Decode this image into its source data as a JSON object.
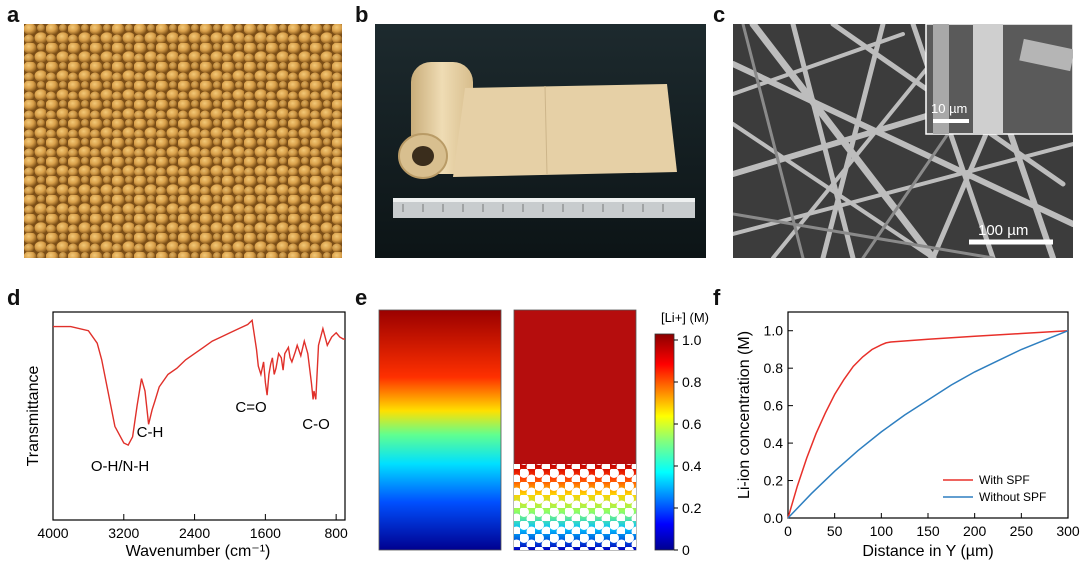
{
  "panels": {
    "a": {
      "letter": "a"
    },
    "b": {
      "letter": "b"
    },
    "c": {
      "letter": "c",
      "inset_scale": "10 µm",
      "main_scale": "100 µm"
    },
    "e": {
      "letter": "e",
      "colorbar_title": "[Li+] (M)",
      "colorbar_ticks": [
        "1.0",
        "0.8",
        "0.6",
        "0.4",
        "0.2",
        "0"
      ]
    }
  },
  "chart_data": [
    {
      "panel": "d",
      "type": "line",
      "xlabel": "Wavenumber (cm⁻¹)",
      "ylabel": "Transmittance",
      "xlim": [
        4000,
        700
      ],
      "x_ticks": [
        4000,
        3200,
        2400,
        1600,
        800
      ],
      "x_reversed": true,
      "series": [
        {
          "color": "#e0302a",
          "x": [
            4000,
            3800,
            3600,
            3500,
            3450,
            3380,
            3300,
            3200,
            3150,
            3100,
            3050,
            3000,
            2960,
            2920,
            2880,
            2850,
            2800,
            2700,
            2600,
            2500,
            2400,
            2300,
            2200,
            2100,
            2000,
            1900,
            1800,
            1750,
            1700,
            1680,
            1650,
            1620,
            1600,
            1580,
            1560,
            1540,
            1520,
            1500,
            1480,
            1450,
            1420,
            1400,
            1380,
            1340,
            1320,
            1300,
            1260,
            1240,
            1200,
            1160,
            1120,
            1100,
            1080,
            1060,
            1050,
            1030,
            1000,
            950,
            900,
            850,
            800,
            760,
            720,
            700
          ],
          "y": [
            0.93,
            0.93,
            0.91,
            0.85,
            0.77,
            0.62,
            0.45,
            0.37,
            0.36,
            0.4,
            0.55,
            0.68,
            0.62,
            0.46,
            0.53,
            0.57,
            0.64,
            0.7,
            0.73,
            0.77,
            0.8,
            0.83,
            0.86,
            0.88,
            0.9,
            0.92,
            0.94,
            0.96,
            0.82,
            0.74,
            0.7,
            0.76,
            0.66,
            0.6,
            0.7,
            0.75,
            0.78,
            0.7,
            0.73,
            0.8,
            0.78,
            0.72,
            0.8,
            0.83,
            0.78,
            0.76,
            0.81,
            0.84,
            0.79,
            0.86,
            0.8,
            0.73,
            0.66,
            0.58,
            0.62,
            0.58,
            0.84,
            0.92,
            0.84,
            0.88,
            0.9,
            0.88,
            0.87,
            0.87
          ]
        }
      ],
      "annotations": [
        "O-H/N-H",
        "C-H",
        "C=O",
        "C-O"
      ]
    },
    {
      "panel": "f",
      "type": "line",
      "xlabel": "Distance in Y (µm)",
      "ylabel": "Li-ion concentration (M)",
      "xlim": [
        0,
        300
      ],
      "ylim": [
        0,
        1.1
      ],
      "x_ticks": [
        0,
        50,
        100,
        150,
        200,
        250,
        300
      ],
      "y_ticks": [
        0.0,
        0.2,
        0.4,
        0.6,
        0.8,
        1.0
      ],
      "legend_position": "bottom-right",
      "series": [
        {
          "name": "With SPF",
          "color": "#e8302a",
          "x": [
            0,
            10,
            20,
            30,
            40,
            50,
            60,
            70,
            80,
            90,
            100,
            105,
            110,
            150,
            200,
            250,
            300
          ],
          "y": [
            0,
            0.17,
            0.32,
            0.45,
            0.56,
            0.66,
            0.74,
            0.81,
            0.86,
            0.9,
            0.925,
            0.935,
            0.94,
            0.955,
            0.97,
            0.985,
            1.0
          ]
        },
        {
          "name": "Without SPF",
          "color": "#2e7fc0",
          "x": [
            0,
            25,
            50,
            75,
            100,
            125,
            150,
            175,
            200,
            225,
            250,
            275,
            300
          ],
          "y": [
            0,
            0.13,
            0.25,
            0.36,
            0.46,
            0.55,
            0.63,
            0.71,
            0.78,
            0.84,
            0.9,
            0.95,
            1.0
          ]
        }
      ]
    }
  ]
}
